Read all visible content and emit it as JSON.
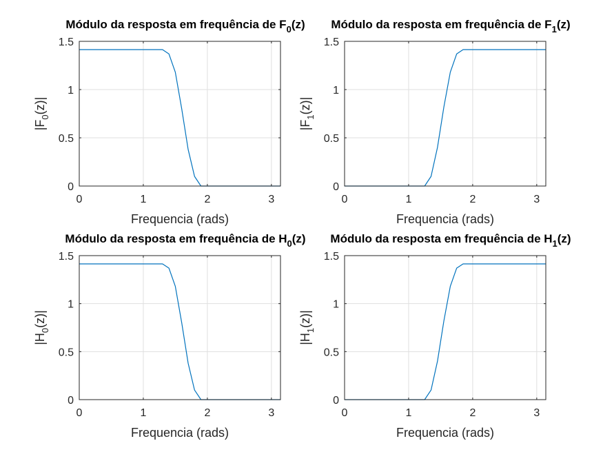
{
  "chart_data": [
    {
      "type": "line",
      "title": "Módulo da resposta em frequência de F",
      "title_subscript": "0",
      "title_suffix": "(z)",
      "xlabel": "Frequencia (rads)",
      "ylabel_prefix": "|F",
      "ylabel_subscript": "0",
      "ylabel_suffix": "(z)|",
      "xlim": [
        0,
        3.1416
      ],
      "ylim": [
        0,
        1.5
      ],
      "xticks": [
        "0",
        "1",
        "2",
        "3"
      ],
      "yticks": [
        "0",
        "0.5",
        "1",
        "1.5"
      ],
      "grid": true,
      "line_color": "#0072BD",
      "series": [
        {
          "x": [
            0,
            1.3,
            1.4,
            1.5,
            1.6,
            1.7,
            1.8,
            1.9,
            3.1416
          ],
          "y": [
            1.414,
            1.414,
            1.37,
            1.18,
            0.8,
            0.38,
            0.1,
            0.0,
            0.0
          ]
        }
      ]
    },
    {
      "type": "line",
      "title": "Módulo da resposta em frequência de F",
      "title_subscript": "1",
      "title_suffix": "(z)",
      "xlabel": "Frequencia (rads)",
      "ylabel_prefix": "|F",
      "ylabel_subscript": "1",
      "ylabel_suffix": "(z)|",
      "xlim": [
        0,
        3.1416
      ],
      "ylim": [
        0,
        1.5
      ],
      "xticks": [
        "0",
        "1",
        "2",
        "3"
      ],
      "yticks": [
        "0",
        "0.5",
        "1",
        "1.5"
      ],
      "grid": true,
      "line_color": "#0072BD",
      "series": [
        {
          "x": [
            0,
            1.25,
            1.35,
            1.45,
            1.55,
            1.65,
            1.75,
            1.85,
            3.1416
          ],
          "y": [
            0.0,
            0.0,
            0.1,
            0.4,
            0.82,
            1.18,
            1.37,
            1.414,
            1.414
          ]
        }
      ]
    },
    {
      "type": "line",
      "title": "Módulo da resposta em frequência de H",
      "title_subscript": "0",
      "title_suffix": "(z)",
      "xlabel": "Frequencia (rads)",
      "ylabel_prefix": "|H",
      "ylabel_subscript": "0",
      "ylabel_suffix": "(z)|",
      "xlim": [
        0,
        3.1416
      ],
      "ylim": [
        0,
        1.5
      ],
      "xticks": [
        "0",
        "1",
        "2",
        "3"
      ],
      "yticks": [
        "0",
        "0.5",
        "1",
        "1.5"
      ],
      "grid": true,
      "line_color": "#0072BD",
      "series": [
        {
          "x": [
            0,
            1.3,
            1.4,
            1.5,
            1.6,
            1.7,
            1.8,
            1.9,
            3.1416
          ],
          "y": [
            1.414,
            1.414,
            1.37,
            1.18,
            0.8,
            0.38,
            0.1,
            0.0,
            0.0
          ]
        }
      ]
    },
    {
      "type": "line",
      "title": "Módulo da resposta em frequência de H",
      "title_subscript": "1",
      "title_suffix": "(z)",
      "xlabel": "Frequencia (rads)",
      "ylabel_prefix": "|H",
      "ylabel_subscript": "1",
      "ylabel_suffix": "(z)|",
      "xlim": [
        0,
        3.1416
      ],
      "ylim": [
        0,
        1.5
      ],
      "xticks": [
        "0",
        "1",
        "2",
        "3"
      ],
      "yticks": [
        "0",
        "0.5",
        "1",
        "1.5"
      ],
      "grid": true,
      "line_color": "#0072BD",
      "series": [
        {
          "x": [
            0,
            1.25,
            1.35,
            1.45,
            1.55,
            1.65,
            1.75,
            1.85,
            3.1416
          ],
          "y": [
            0.0,
            0.0,
            0.1,
            0.4,
            0.82,
            1.18,
            1.37,
            1.414,
            1.414
          ]
        }
      ]
    }
  ]
}
